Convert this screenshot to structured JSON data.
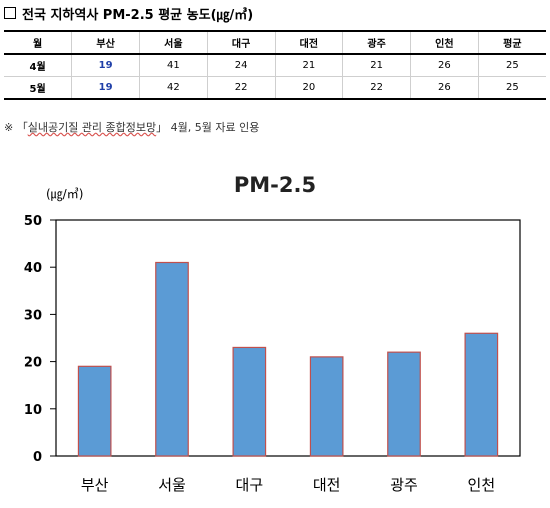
{
  "heading": {
    "box_icon": "empty-square",
    "title": "전국 지하역사 PM-2.5 평균 농도(㎍/㎥)"
  },
  "table": {
    "headers": [
      "월",
      "부산",
      "서울",
      "대구",
      "대전",
      "광주",
      "인천",
      "평균"
    ],
    "rows": [
      [
        "4월",
        "19",
        "41",
        "24",
        "21",
        "21",
        "26",
        "25"
      ],
      [
        "5월",
        "19",
        "42",
        "22",
        "20",
        "22",
        "26",
        "25"
      ]
    ],
    "highlight_color": "#1f3fa8"
  },
  "note": {
    "prefix": "※ 「",
    "source": "실내공기질 관리 종합정보망",
    "suffix": "」 4월, 5월 자료 인용"
  },
  "chart_data": {
    "type": "bar",
    "title": "PM-2.5",
    "unit_label": "(㎍/㎥)",
    "categories": [
      "부산",
      "서울",
      "대구",
      "대전",
      "광주",
      "인천"
    ],
    "values": [
      19,
      41,
      23,
      21,
      22,
      26
    ],
    "ylim": [
      0,
      50
    ],
    "yticks": [
      0,
      10,
      20,
      30,
      40,
      50
    ],
    "grid": false,
    "legend": "none",
    "bar_color": "#5b9bd5",
    "bar_outline_color": "#c0504d"
  }
}
